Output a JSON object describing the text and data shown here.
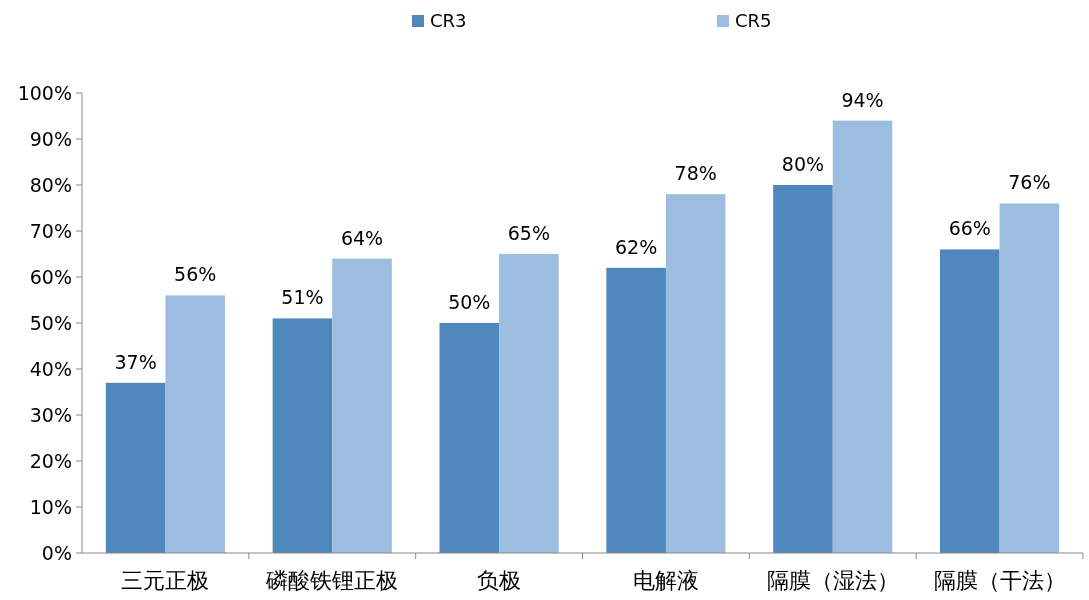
{
  "chart_data": {
    "type": "bar",
    "categories": [
      "三元正极",
      "磷酸铁锂正极",
      "负极",
      "电解液",
      "隔膜（湿法）",
      "隔膜（干法）"
    ],
    "series": [
      {
        "name": "CR3",
        "color": "#4f88bc",
        "values": [
          37,
          51,
          50,
          62,
          80,
          66
        ],
        "value_labels": [
          "37%",
          "51%",
          "50%",
          "62%",
          "80%",
          "66%"
        ]
      },
      {
        "name": "CR5",
        "color": "#9dbde0",
        "values": [
          56,
          64,
          65,
          78,
          94,
          76
        ],
        "value_labels": [
          "56%",
          "64%",
          "65%",
          "78%",
          "94%",
          "76%"
        ]
      }
    ],
    "ylim": [
      0,
      100
    ],
    "yticks": [
      {
        "value": 0,
        "label": "0%"
      },
      {
        "value": 10,
        "label": "10%"
      },
      {
        "value": 20,
        "label": "20%"
      },
      {
        "value": 30,
        "label": "30%"
      },
      {
        "value": 40,
        "label": "40%"
      },
      {
        "value": 50,
        "label": "50%"
      },
      {
        "value": 60,
        "label": "60%"
      },
      {
        "value": 70,
        "label": "70%"
      },
      {
        "value": 80,
        "label": "80%"
      },
      {
        "value": 90,
        "label": "90%"
      },
      {
        "value": 100,
        "label": "100%"
      }
    ],
    "grid": false,
    "legend": "top"
  }
}
